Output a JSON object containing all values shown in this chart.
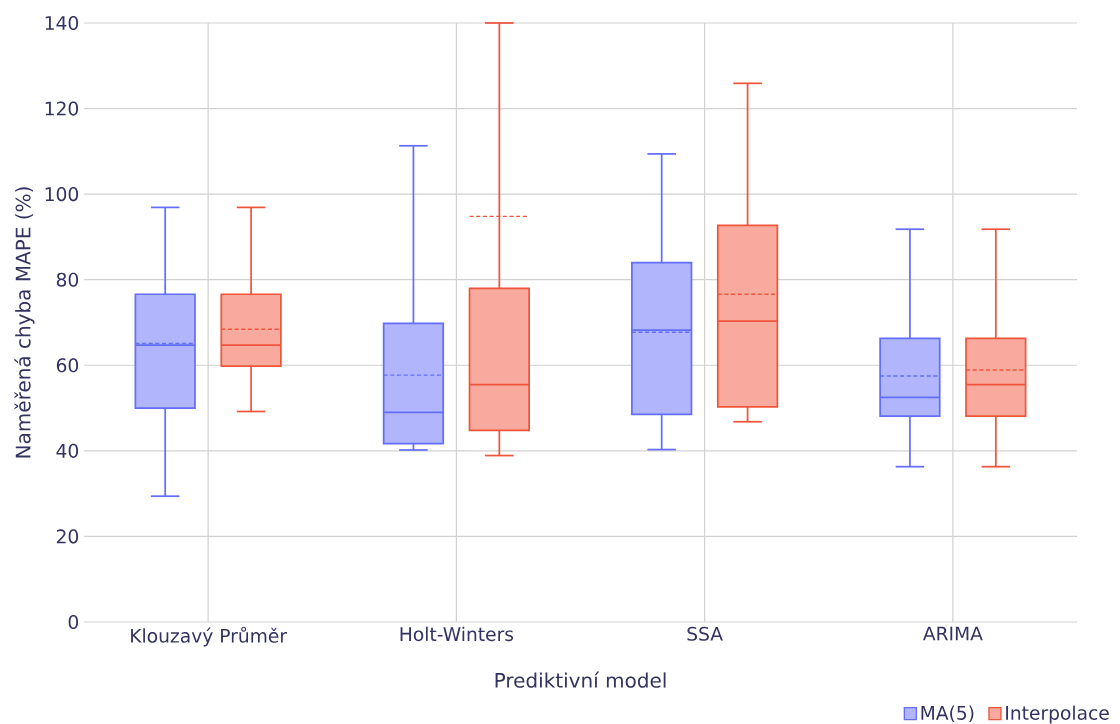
{
  "chart_data": {
    "type": "box",
    "xlabel": "Prediktivní model",
    "ylabel": "Naměřená chyba MAPE (%)",
    "categories": [
      "Klouzavý Průměr",
      "Holt-Winters",
      "SSA",
      "ARIMA"
    ],
    "ylim": [
      0,
      140
    ],
    "yticks": [
      0,
      20,
      40,
      60,
      80,
      100,
      120,
      140
    ],
    "grid": true,
    "legend": "bottom right",
    "series": [
      {
        "name": "MA(5)",
        "color": "#636efa",
        "boxes": [
          {
            "low": 29.4,
            "q1": 50.0,
            "median": 64.7,
            "q3": 76.6,
            "high": 96.9,
            "mean": 65.1
          },
          {
            "low": 40.2,
            "q1": 41.7,
            "median": 49.0,
            "q3": 69.8,
            "high": 111.3,
            "mean": 57.7
          },
          {
            "low": 40.3,
            "q1": 48.5,
            "median": 68.2,
            "q3": 84.0,
            "high": 109.4,
            "mean": 67.7
          },
          {
            "low": 36.3,
            "q1": 48.1,
            "median": 52.5,
            "q3": 66.3,
            "high": 91.8,
            "mean": 57.5
          }
        ]
      },
      {
        "name": "Interpolace",
        "color": "#ef553b",
        "boxes": [
          {
            "low": 49.2,
            "q1": 59.8,
            "median": 64.7,
            "q3": 76.6,
            "high": 96.9,
            "mean": 68.4
          },
          {
            "low": 38.9,
            "q1": 44.8,
            "median": 55.5,
            "q3": 78.0,
            "high": 140,
            "mean": 94.8
          },
          {
            "low": 46.8,
            "q1": 50.3,
            "median": 70.3,
            "q3": 92.7,
            "high": 125.9,
            "mean": 76.6
          },
          {
            "low": 36.3,
            "q1": 48.1,
            "median": 55.5,
            "q3": 66.3,
            "high": 91.8,
            "mean": 58.9
          }
        ]
      }
    ]
  }
}
